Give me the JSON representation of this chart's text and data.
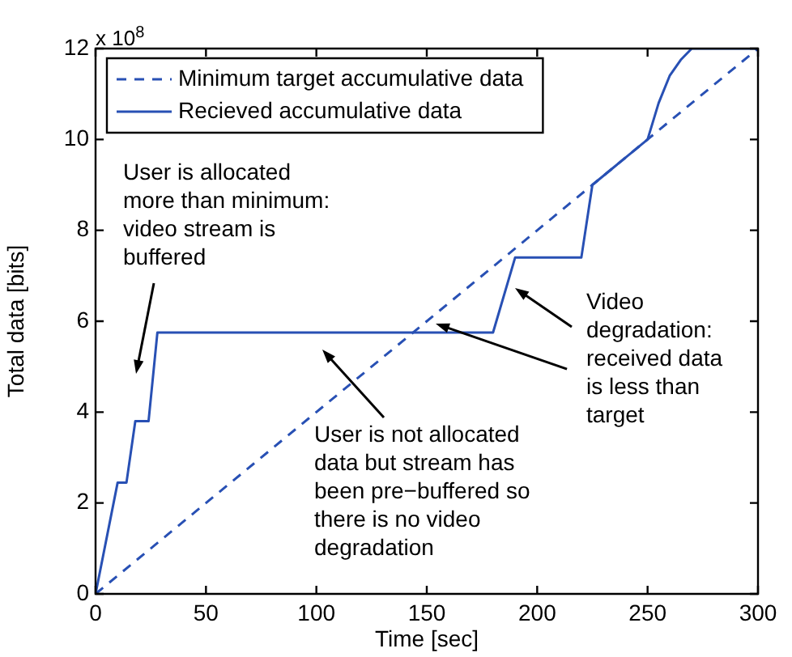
{
  "chart_data": {
    "type": "line",
    "xlabel": "Time [sec]",
    "ylabel": "Total data [bits]",
    "xlim": [
      0,
      300
    ],
    "xticks": [
      0,
      50,
      100,
      150,
      200,
      250,
      300
    ],
    "ylim": [
      0,
      12
    ],
    "yticks": [
      0,
      2,
      4,
      6,
      8,
      10,
      12
    ],
    "grid": false,
    "legend": "top left",
    "marker": "none",
    "series": [
      {
        "name": "Minimum target accumulative data",
        "color": "#2850b4",
        "line_style": "dashed",
        "x": [
          0,
          300
        ],
        "values": [
          0,
          12
        ]
      },
      {
        "name": "Recieved accumulative data",
        "color": "#2850b4",
        "line_style": "solid",
        "x": [
          0,
          10,
          14,
          18,
          24,
          28,
          180,
          190,
          220,
          225,
          250,
          255,
          260,
          265,
          270,
          300
        ],
        "values": [
          0,
          2.45,
          2.45,
          3.8,
          3.8,
          5.75,
          5.75,
          7.4,
          7.4,
          9.0,
          10,
          10.8,
          11.4,
          11.75,
          12,
          12
        ]
      }
    ],
    "annotations": [
      "x 10$^{8}$",
      "User is allocated\nmore than minimum:\nvideo stream is\nbuffered",
      "User is not allocated\ndata but stream has\nbeen pre−buffered so\nthere is no video\ndegradation",
      {
        "text": "Video\ndegradation:\nreceived data\nis less than\ntarget",
        "x": 154,
        "y": 5.95
      }
    ]
  }
}
